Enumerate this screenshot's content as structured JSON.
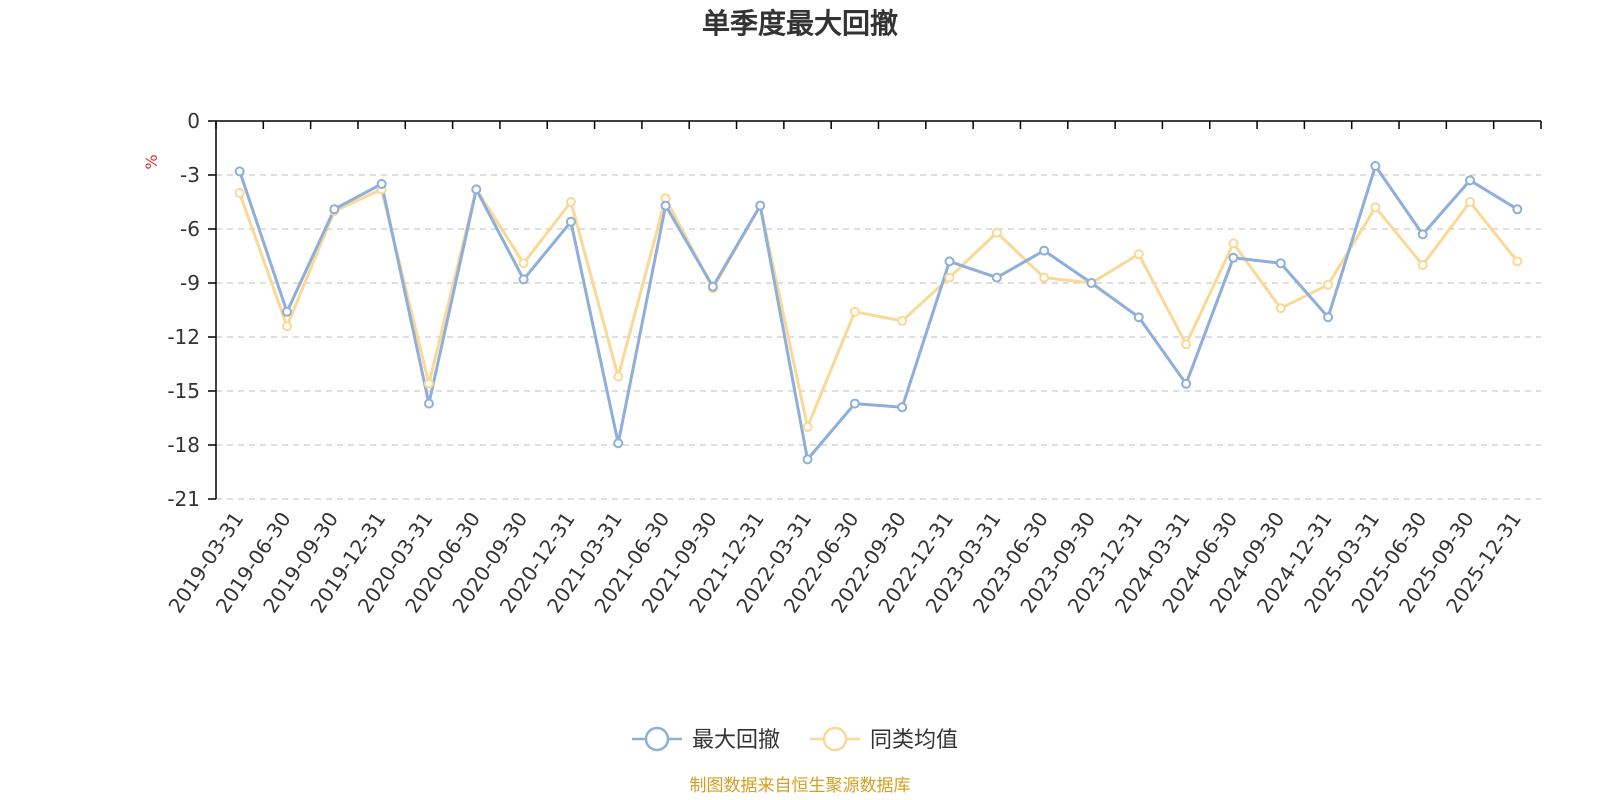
{
  "chart_data": {
    "type": "line",
    "title": "单季度最大回撤",
    "unit_label": "%",
    "ylim": [
      -21,
      0
    ],
    "yticks": [
      0,
      -3,
      -6,
      -9,
      -12,
      -15,
      -18,
      -21
    ],
    "grid": true,
    "legend_position": "bottom",
    "categories": [
      "2019-03-31",
      "2019-06-30",
      "2019-09-30",
      "2019-12-31",
      "2020-03-31",
      "2020-06-30",
      "2020-09-30",
      "2020-12-31",
      "2021-03-31",
      "2021-06-30",
      "2021-09-30",
      "2021-12-31",
      "2022-03-31",
      "2022-06-30",
      "2022-09-30",
      "2022-12-31",
      "2023-03-31",
      "2023-06-30",
      "2023-09-30",
      "2023-12-31",
      "2024-03-31",
      "2024-06-30",
      "2024-09-30",
      "2024-12-31",
      "2025-03-31",
      "2025-06-30",
      "2025-09-30",
      "2025-12-31"
    ],
    "series": [
      {
        "name": "最大回撤",
        "color": "#8eaedb",
        "values": [
          -2.8,
          -10.6,
          -4.9,
          -3.5,
          -15.7,
          -3.8,
          -8.8,
          -5.6,
          -17.9,
          -4.7,
          -9.2,
          -4.7,
          -18.8,
          -15.7,
          -15.9,
          -7.8,
          -8.7,
          -7.2,
          -9.0,
          -10.9,
          -14.6,
          -7.6,
          -7.9,
          -10.9,
          -2.5,
          -6.3,
          -3.3,
          -4.9
        ]
      },
      {
        "name": "同类均值",
        "color": "#fad896",
        "values": [
          -4.0,
          -11.4,
          -5.0,
          -3.8,
          -14.6,
          -3.8,
          -7.9,
          -4.5,
          -14.2,
          -4.3,
          -9.3,
          -4.7,
          -17.0,
          -10.6,
          -11.1,
          -8.7,
          -6.2,
          -8.7,
          -9.0,
          -7.4,
          -12.4,
          -6.8,
          -10.4,
          -9.1,
          -4.8,
          -8.0,
          -4.5,
          -7.8
        ]
      }
    ],
    "source": "制图数据来自恒生聚源数据库",
    "colors": {
      "axis": "#000000",
      "grid": "#cccccc",
      "text": "#333333",
      "unit": "#e03030",
      "source": "#d4a020"
    }
  }
}
